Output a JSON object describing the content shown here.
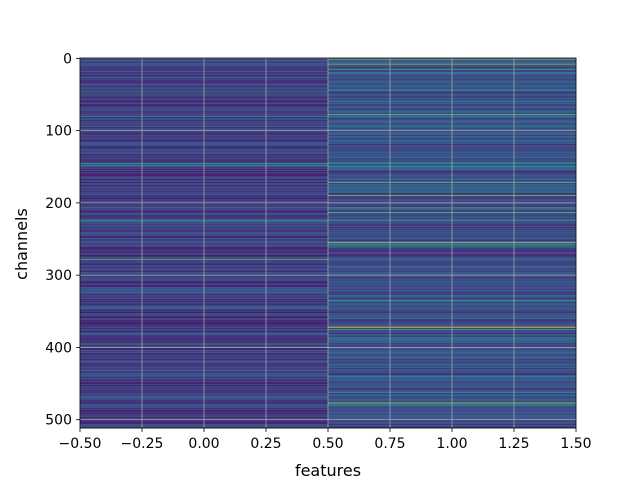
{
  "chart_data": {
    "type": "heatmap",
    "title": "",
    "xlabel": "features",
    "ylabel": "channels",
    "xlim": [
      -0.5,
      1.5
    ],
    "ylim": [
      511.5,
      -0.5
    ],
    "x_ticks": [
      -0.5,
      -0.25,
      0.0,
      0.25,
      0.5,
      0.75,
      1.0,
      1.25,
      1.5
    ],
    "x_tick_labels": [
      "−0.50",
      "−0.25",
      "0.00",
      "0.25",
      "0.50",
      "0.75",
      "1.00",
      "1.25",
      "1.50"
    ],
    "y_ticks": [
      0,
      100,
      200,
      300,
      400,
      500
    ],
    "y_tick_labels": [
      "0",
      "100",
      "200",
      "300",
      "400",
      "500"
    ],
    "grid": true,
    "colormap": "viridis",
    "n_rows": 512,
    "n_cols": 2,
    "columns": [
      {
        "feature_index": 0,
        "base_value": 0.2,
        "highlight_rows": [
          {
            "row": 48,
            "value": 0.55
          },
          {
            "row": 62,
            "value": 0.45
          },
          {
            "row": 80,
            "value": 0.5
          },
          {
            "row": 145,
            "value": 0.65
          },
          {
            "row": 148,
            "value": 0.5
          },
          {
            "row": 225,
            "value": 0.6
          },
          {
            "row": 278,
            "value": 0.75
          },
          {
            "row": 345,
            "value": 0.45
          },
          {
            "row": 380,
            "value": 0.45
          },
          {
            "row": 395,
            "value": 0.5
          },
          {
            "row": 470,
            "value": 0.4
          },
          {
            "row": 500,
            "value": 0.45
          }
        ]
      },
      {
        "feature_index": 1,
        "base_value": 0.25,
        "highlight_rows": [
          {
            "row": 2,
            "value": 0.7
          },
          {
            "row": 8,
            "value": 0.85
          },
          {
            "row": 15,
            "value": 0.6
          },
          {
            "row": 20,
            "value": 0.55
          },
          {
            "row": 45,
            "value": 0.55
          },
          {
            "row": 60,
            "value": 0.5
          },
          {
            "row": 78,
            "value": 0.75
          },
          {
            "row": 95,
            "value": 0.5
          },
          {
            "row": 130,
            "value": 0.45
          },
          {
            "row": 145,
            "value": 0.6
          },
          {
            "row": 150,
            "value": 0.55
          },
          {
            "row": 172,
            "value": 0.75
          },
          {
            "row": 190,
            "value": 0.8
          },
          {
            "row": 200,
            "value": 0.7
          },
          {
            "row": 207,
            "value": 0.65
          },
          {
            "row": 213,
            "value": 0.75
          },
          {
            "row": 225,
            "value": 0.6
          },
          {
            "row": 255,
            "value": 0.85
          },
          {
            "row": 258,
            "value": 0.6
          },
          {
            "row": 290,
            "value": 0.5
          },
          {
            "row": 300,
            "value": 0.55
          },
          {
            "row": 335,
            "value": 0.55
          },
          {
            "row": 360,
            "value": 0.5
          },
          {
            "row": 372,
            "value": 1.0
          },
          {
            "row": 375,
            "value": 0.7
          },
          {
            "row": 400,
            "value": 0.5
          },
          {
            "row": 440,
            "value": 0.5
          },
          {
            "row": 462,
            "value": 0.55
          },
          {
            "row": 477,
            "value": 0.85
          },
          {
            "row": 480,
            "value": 0.6
          }
        ]
      }
    ]
  }
}
